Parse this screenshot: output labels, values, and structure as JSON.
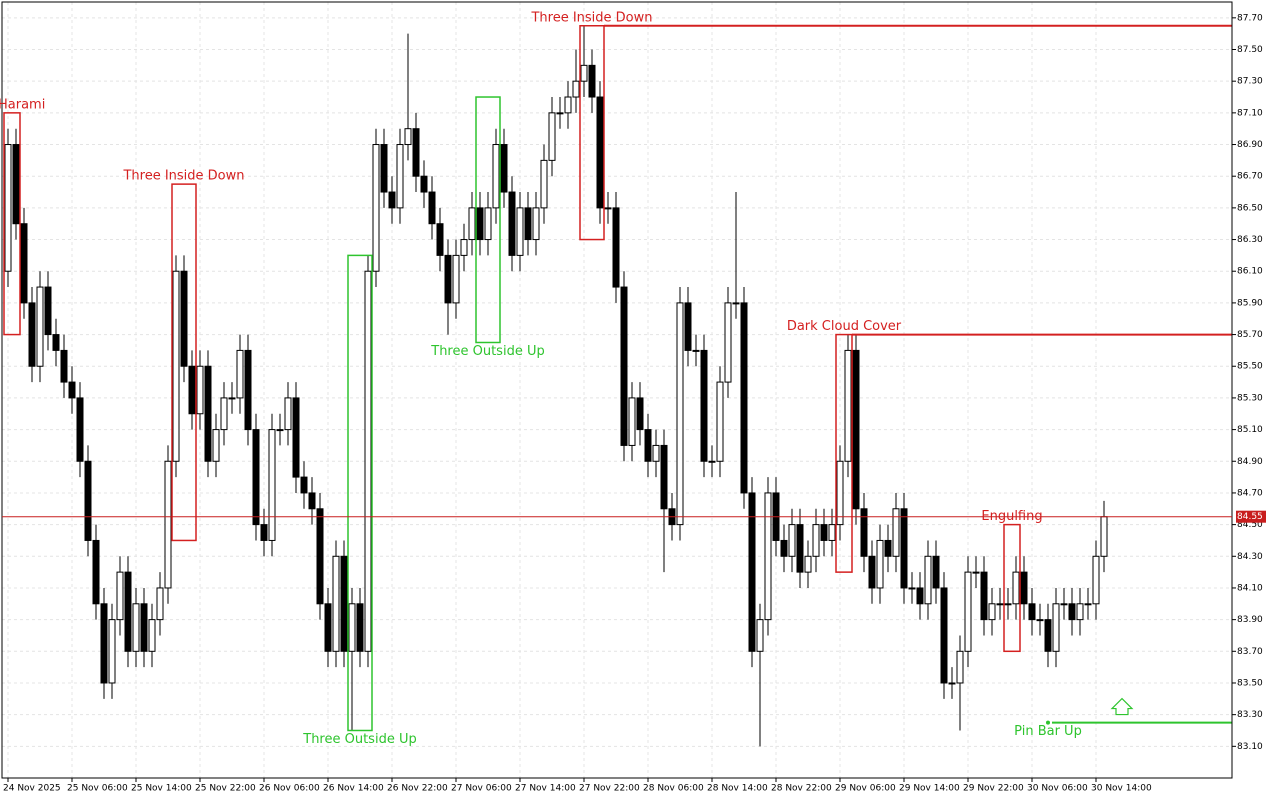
{
  "chart_data": {
    "type": "candlestick",
    "categories": [
      "24 Nov 2025",
      null,
      null,
      null,
      null,
      null,
      null,
      null,
      "25 Nov 06:00",
      null,
      null,
      null,
      null,
      null,
      null,
      null,
      "25 Nov 14:00",
      null,
      null,
      null,
      null,
      null,
      null,
      null,
      "25 Nov 22:00",
      null,
      null,
      null,
      null,
      null,
      null,
      null,
      "26 Nov 06:00",
      null,
      null,
      null,
      null,
      null,
      null,
      null,
      "26 Nov 14:00",
      null,
      null,
      null,
      null,
      null,
      null,
      null,
      "26 Nov 22:00",
      null,
      null,
      null,
      null,
      null,
      null,
      null,
      "27 Nov 06:00",
      null,
      null,
      null,
      null,
      null,
      null,
      null,
      "27 Nov 14:00",
      null,
      null,
      null,
      null,
      null,
      null,
      null,
      "27 Nov 22:00",
      null,
      null,
      null,
      null,
      null,
      null,
      null,
      "28 Nov 06:00",
      null,
      null,
      null,
      null,
      null,
      null,
      null,
      "28 Nov 14:00",
      null,
      null,
      null,
      null,
      null,
      null,
      null,
      "28 Nov 22:00",
      null,
      null,
      null,
      null,
      null,
      null,
      null,
      "29 Nov 06:00",
      null,
      null,
      null,
      null,
      null,
      null,
      null,
      "29 Nov 14:00",
      null,
      null,
      null,
      null,
      null,
      null,
      null,
      "29 Nov 22:00",
      null,
      null,
      null,
      null,
      null,
      null,
      null,
      "30 Nov 06:00",
      null,
      null,
      null,
      null,
      null,
      null,
      null,
      "30 Nov 14:00",
      null
    ],
    "open": [
      86.1,
      86.9,
      86.4,
      85.9,
      85.5,
      86.0,
      85.7,
      85.6,
      85.4,
      85.3,
      84.9,
      84.4,
      84.0,
      83.5,
      83.9,
      84.2,
      83.7,
      84.0,
      83.7,
      83.9,
      84.1,
      84.9,
      86.1,
      85.5,
      85.2,
      85.5,
      84.9,
      85.1,
      85.3,
      85.3,
      85.6,
      85.1,
      84.5,
      84.4,
      85.1,
      85.1,
      85.3,
      84.8,
      84.7,
      84.6,
      84.0,
      83.7,
      84.3,
      83.7,
      84.0,
      83.7,
      86.1,
      86.9,
      86.6,
      86.5,
      86.9,
      87.0,
      86.7,
      86.6,
      86.4,
      86.2,
      85.9,
      86.2,
      86.3,
      86.5,
      86.3,
      86.5,
      86.9,
      86.6,
      86.2,
      86.5,
      86.3,
      86.5,
      86.8,
      87.1,
      87.1,
      87.2,
      87.3,
      87.4,
      87.2,
      86.5,
      86.5,
      86.0,
      85.0,
      85.3,
      85.1,
      84.9,
      85.0,
      84.6,
      84.5,
      85.9,
      85.6,
      85.6,
      84.9,
      84.9,
      85.4,
      85.9,
      85.9,
      84.7,
      83.7,
      83.9,
      84.7,
      84.4,
      84.3,
      84.5,
      84.2,
      84.3,
      84.5,
      84.4,
      84.5,
      84.9,
      85.6,
      84.6,
      84.3,
      84.1,
      84.4,
      84.3,
      84.6,
      84.1,
      84.1,
      84.0,
      84.3,
      84.1,
      83.5,
      83.5,
      83.7,
      84.2,
      84.2,
      83.9,
      84.0,
      84.0,
      84.0,
      84.2,
      84.0,
      83.9,
      83.9,
      83.7,
      84.0,
      84.0,
      83.9,
      84.0,
      84.0,
      84.3
    ],
    "high": [
      87.0,
      87.0,
      86.5,
      86.0,
      86.1,
      86.1,
      85.8,
      85.7,
      85.5,
      85.4,
      85.0,
      84.5,
      84.1,
      84.0,
      84.3,
      84.3,
      84.1,
      84.1,
      84.0,
      84.2,
      85.0,
      86.2,
      86.2,
      85.6,
      85.6,
      85.6,
      85.2,
      85.4,
      85.4,
      85.7,
      85.7,
      85.2,
      84.6,
      85.2,
      85.2,
      85.4,
      85.4,
      84.9,
      84.8,
      84.7,
      84.1,
      84.4,
      84.4,
      84.1,
      84.1,
      86.2,
      87.0,
      87.0,
      86.7,
      87.0,
      87.6,
      87.1,
      86.8,
      86.7,
      86.5,
      86.3,
      86.3,
      86.4,
      86.6,
      86.6,
      86.6,
      87.0,
      87.0,
      86.7,
      86.6,
      86.6,
      86.6,
      86.9,
      87.2,
      87.2,
      87.3,
      87.5,
      87.65,
      87.5,
      87.3,
      86.6,
      86.6,
      86.1,
      85.4,
      85.4,
      85.2,
      85.1,
      85.1,
      84.7,
      86.0,
      86.0,
      85.7,
      85.7,
      85.0,
      85.5,
      86.0,
      86.6,
      86.0,
      84.8,
      84.0,
      84.8,
      84.8,
      84.5,
      84.6,
      84.6,
      84.4,
      84.6,
      84.6,
      84.6,
      85.0,
      85.7,
      85.7,
      84.7,
      84.4,
      84.5,
      84.5,
      84.7,
      84.7,
      84.2,
      84.2,
      84.4,
      84.4,
      84.2,
      83.6,
      83.8,
      84.3,
      84.3,
      84.3,
      84.1,
      84.1,
      84.1,
      84.3,
      84.3,
      84.1,
      84.0,
      84.0,
      84.1,
      84.1,
      84.1,
      84.1,
      84.1,
      84.4,
      84.65
    ],
    "low": [
      86.0,
      86.3,
      85.8,
      85.4,
      85.4,
      85.6,
      85.5,
      85.3,
      85.2,
      84.8,
      84.3,
      83.9,
      83.4,
      83.4,
      83.8,
      83.6,
      83.6,
      83.6,
      83.6,
      83.8,
      84.0,
      84.8,
      85.4,
      85.1,
      85.1,
      84.8,
      84.8,
      85.0,
      85.2,
      85.2,
      85.0,
      84.4,
      84.3,
      84.3,
      85.0,
      85.0,
      84.7,
      84.6,
      84.5,
      83.9,
      83.6,
      83.6,
      83.6,
      83.2,
      83.6,
      83.6,
      86.0,
      86.5,
      86.4,
      86.4,
      86.8,
      86.6,
      86.5,
      86.3,
      86.1,
      85.7,
      85.8,
      86.1,
      86.2,
      86.2,
      86.2,
      86.4,
      86.5,
      86.1,
      86.1,
      86.2,
      86.2,
      86.4,
      86.7,
      87.0,
      87.0,
      87.1,
      87.2,
      87.1,
      86.4,
      86.4,
      85.9,
      84.9,
      84.9,
      85.0,
      84.8,
      84.8,
      84.2,
      84.4,
      84.4,
      85.5,
      85.5,
      84.8,
      84.8,
      84.8,
      85.3,
      85.8,
      84.6,
      83.6,
      83.1,
      83.8,
      84.3,
      84.2,
      84.2,
      84.1,
      84.1,
      84.2,
      84.3,
      84.3,
      84.4,
      84.8,
      84.5,
      84.2,
      84.0,
      84.0,
      84.2,
      84.2,
      84.0,
      84.0,
      83.9,
      83.9,
      84.0,
      83.4,
      83.4,
      83.2,
      83.6,
      84.1,
      83.8,
      83.8,
      83.9,
      83.9,
      83.9,
      83.9,
      83.8,
      83.8,
      83.6,
      83.6,
      83.9,
      83.8,
      83.8,
      83.9,
      83.9,
      84.2
    ],
    "close": [
      86.9,
      86.4,
      85.9,
      85.5,
      86.0,
      85.7,
      85.6,
      85.4,
      85.3,
      84.9,
      84.4,
      84.0,
      83.5,
      83.9,
      84.2,
      83.7,
      84.0,
      83.7,
      83.9,
      84.1,
      84.9,
      86.1,
      85.5,
      85.2,
      85.5,
      84.9,
      85.1,
      85.3,
      85.3,
      85.6,
      85.1,
      84.5,
      84.4,
      85.1,
      85.1,
      85.3,
      84.8,
      84.7,
      84.6,
      84.0,
      83.7,
      84.3,
      83.7,
      84.0,
      83.7,
      86.1,
      86.9,
      86.6,
      86.5,
      86.9,
      87.0,
      86.7,
      86.6,
      86.4,
      86.2,
      85.9,
      86.2,
      86.3,
      86.5,
      86.3,
      86.5,
      86.9,
      86.6,
      86.2,
      86.5,
      86.3,
      86.5,
      86.8,
      87.1,
      87.1,
      87.2,
      87.3,
      87.4,
      87.2,
      86.5,
      86.5,
      86.0,
      85.0,
      85.3,
      85.1,
      84.9,
      85.0,
      84.6,
      84.5,
      85.9,
      85.6,
      85.6,
      84.9,
      84.9,
      85.4,
      85.9,
      85.9,
      84.7,
      83.7,
      83.9,
      84.7,
      84.4,
      84.3,
      84.5,
      84.2,
      84.3,
      84.5,
      84.4,
      84.5,
      84.9,
      85.6,
      84.6,
      84.3,
      84.1,
      84.4,
      84.3,
      84.6,
      84.1,
      84.1,
      84.0,
      84.3,
      84.1,
      83.5,
      83.5,
      83.7,
      84.2,
      84.2,
      83.9,
      84.0,
      84.0,
      84.0,
      84.2,
      84.0,
      83.9,
      83.9,
      83.7,
      84.0,
      84.0,
      83.9,
      84.0,
      84.0,
      84.3,
      84.55
    ],
    "ylim": [
      82.9,
      87.8
    ],
    "yticks": [
      {
        "value": 83.1,
        "label": "83.10"
      },
      {
        "value": 83.3,
        "label": "83.30"
      },
      {
        "value": 83.5,
        "label": "83.50"
      },
      {
        "value": 83.7,
        "label": "83.70"
      },
      {
        "value": 83.9,
        "label": "83.90"
      },
      {
        "value": 84.1,
        "label": "84.10"
      },
      {
        "value": 84.3,
        "label": "84.30"
      },
      {
        "value": 84.5,
        "label": "84.50"
      },
      {
        "value": 84.7,
        "label": "84.70"
      },
      {
        "value": 84.9,
        "label": "84.90"
      },
      {
        "value": 85.1,
        "label": "85.10"
      },
      {
        "value": 85.3,
        "label": "85.30"
      },
      {
        "value": 85.5,
        "label": "85.50"
      },
      {
        "value": 85.7,
        "label": "85.70"
      },
      {
        "value": 85.9,
        "label": "85.90"
      },
      {
        "value": 86.1,
        "label": "86.10"
      },
      {
        "value": 86.3,
        "label": "86.30"
      },
      {
        "value": 86.5,
        "label": "86.50"
      },
      {
        "value": 86.7,
        "label": "86.70"
      },
      {
        "value": 86.9,
        "label": "86.90"
      },
      {
        "value": 87.1,
        "label": "87.10"
      },
      {
        "value": 87.3,
        "label": "87.30"
      },
      {
        "value": 87.5,
        "label": "87.50"
      },
      {
        "value": 87.7,
        "label": "87.70"
      }
    ],
    "grid": true,
    "current_price": {
      "value": 84.55,
      "label": "84.55"
    },
    "annotations": [
      {
        "text": "Harami",
        "color": "#d42020",
        "top": 87.1,
        "bottom": 85.7,
        "start": 0,
        "end": 1
      },
      {
        "text": "Three Inside Down",
        "color": "#d42020",
        "top": 86.65,
        "bottom": 84.4,
        "start": 21,
        "end": 23
      },
      {
        "text": "Three Outside Up",
        "color": "#2ec42e",
        "top": 86.2,
        "bottom": 83.2,
        "start": 43,
        "end": 45
      },
      {
        "text": "Three Outside Up",
        "color": "#2ec42e",
        "top": 87.2,
        "bottom": 85.65,
        "start": 59,
        "end": 61
      },
      {
        "text": "Three Inside Down",
        "color": "#d42020",
        "top": 87.65,
        "bottom": 86.3,
        "start": 72,
        "end": 74,
        "level": 87.65
      },
      {
        "text": "Dark Cloud Cover",
        "color": "#d42020",
        "top": 85.7,
        "bottom": 84.2,
        "start": 104,
        "end": 105,
        "level": 85.7
      },
      {
        "text": "Engulfing",
        "color": "#d42020",
        "top": 84.5,
        "bottom": 83.7,
        "start": 125,
        "end": 126
      },
      {
        "text": "Pin Bar Up",
        "color": "#2ec42e",
        "start": 130,
        "end": 130,
        "level": 83.25
      }
    ]
  }
}
